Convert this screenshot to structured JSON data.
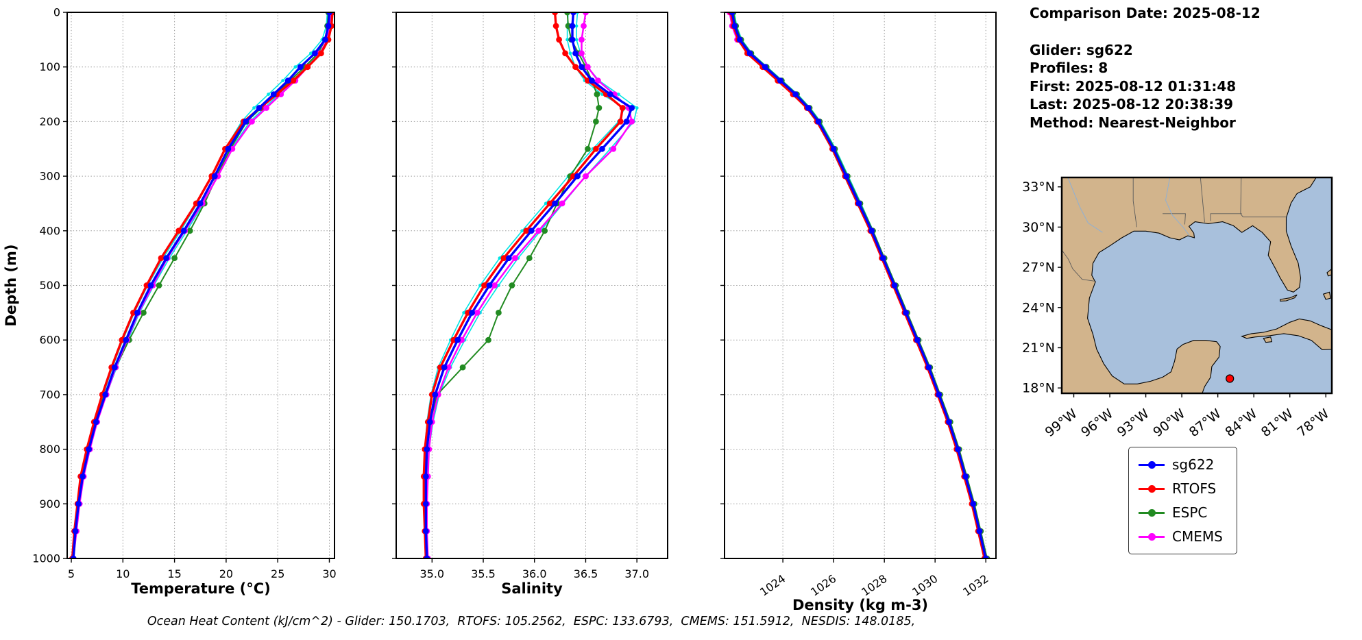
{
  "info_panel": {
    "lines": [
      "Comparison Date: 2025-08-12",
      "Glider: sg622",
      "Profiles: 8",
      "First: 2025-08-12 01:31:48",
      "Last: 2025-08-12 20:38:39",
      "Method: Nearest-Neighbor"
    ]
  },
  "footer": "Ocean Heat Content (kJ/cm^2) - Glider: 150.1703,  RTOFS: 105.2562,  ESPC: 133.6793,  CMEMS: 151.5912,  NESDIS: 148.0185,",
  "ocean_heat_content": {
    "units": "kJ/cm^2",
    "Glider": 150.1703,
    "RTOFS": 105.2562,
    "ESPC": 133.6793,
    "CMEMS": 151.5912,
    "NESDIS": 148.0185
  },
  "legend": {
    "entries": [
      {
        "label": "sg622",
        "color": "#0000ff"
      },
      {
        "label": "RTOFS",
        "color": "#ff0000"
      },
      {
        "label": "ESPC",
        "color": "#228b22"
      },
      {
        "label": "CMEMS",
        "color": "#ff00ff"
      }
    ]
  },
  "chart_data": [
    {
      "name": "temperature",
      "type": "line",
      "xlabel": "Temperature (°C)",
      "ylabel": "Depth (m)",
      "xlim": [
        4.6,
        30.5
      ],
      "xticks": [
        5,
        10,
        15,
        20,
        25,
        30
      ],
      "xtick_labels": [
        "5",
        "10",
        "15",
        "20",
        "25",
        "30"
      ],
      "ylim": [
        0,
        1000
      ],
      "yticks": [
        0,
        100,
        200,
        300,
        400,
        500,
        600,
        700,
        800,
        900,
        1000
      ],
      "show_ytick_labels": true,
      "rotate_xticks": false,
      "grid": true,
      "depths": [
        0,
        25,
        50,
        75,
        100,
        125,
        150,
        175,
        200,
        250,
        300,
        350,
        400,
        450,
        500,
        550,
        600,
        650,
        700,
        750,
        800,
        850,
        900,
        950,
        1000
      ],
      "series": [
        {
          "name": "glider-profile-upper",
          "legend": false,
          "color": "#00e5e5",
          "lw": 1.6,
          "marker": true,
          "r": 2.4,
          "values": [
            30.2,
            30.1,
            29.9,
            29.0,
            27.7,
            26.5,
            25.1,
            23.7,
            22.3,
            20.5,
            19.2,
            17.8,
            16.2,
            14.5,
            13.0,
            11.6,
            10.5,
            9.4,
            8.4,
            7.5,
            6.8,
            6.2,
            5.8,
            5.5,
            5.25
          ]
        },
        {
          "name": "glider-profile-lower",
          "legend": false,
          "color": "#00e5e5",
          "lw": 1.6,
          "marker": true,
          "r": 2.4,
          "values": [
            29.8,
            29.7,
            29.3,
            28.2,
            26.7,
            25.5,
            24.1,
            22.7,
            21.5,
            19.9,
            18.6,
            17.2,
            15.6,
            13.9,
            12.4,
            11.1,
            10.0,
            9.0,
            8.1,
            7.3,
            6.6,
            6.0,
            5.6,
            5.35,
            5.15
          ]
        },
        {
          "name": "ESPC",
          "legend": true,
          "color": "#228b22",
          "lw": 2.0,
          "marker": true,
          "r": 4.4,
          "values": [
            29.9,
            29.8,
            29.6,
            28.9,
            27.6,
            26.2,
            24.8,
            23.4,
            22.0,
            20.4,
            19.1,
            17.9,
            16.5,
            15.0,
            13.5,
            12.0,
            10.6,
            9.3,
            8.2,
            7.3,
            6.6,
            6.0,
            5.7,
            5.4,
            5.2
          ]
        },
        {
          "name": "CMEMS",
          "legend": true,
          "color": "#ff00ff",
          "lw": 2.5,
          "marker": true,
          "r": 4.4,
          "values": [
            30.1,
            30.0,
            29.8,
            29.1,
            27.9,
            26.7,
            25.3,
            23.9,
            22.5,
            20.6,
            19.2,
            17.7,
            16.0,
            14.3,
            12.9,
            11.5,
            10.4,
            9.3,
            8.4,
            7.5,
            6.8,
            6.2,
            5.8,
            5.5,
            5.2
          ]
        },
        {
          "name": "RTOFS",
          "legend": true,
          "color": "#ff0000",
          "lw": 3.4,
          "marker": true,
          "r": 4.4,
          "values": [
            30.3,
            30.2,
            29.9,
            29.2,
            27.9,
            26.5,
            24.9,
            23.3,
            21.7,
            19.9,
            18.6,
            17.1,
            15.4,
            13.7,
            12.3,
            11.0,
            9.9,
            8.9,
            8.0,
            7.2,
            6.5,
            5.9,
            5.6,
            5.3,
            5.1
          ]
        },
        {
          "name": "sg622",
          "legend": true,
          "color": "#0000ff",
          "lw": 3.4,
          "marker": true,
          "r": 4.4,
          "values": [
            30.0,
            29.9,
            29.6,
            28.6,
            27.2,
            26.0,
            24.6,
            23.2,
            21.9,
            20.2,
            18.9,
            17.5,
            15.9,
            14.2,
            12.7,
            11.4,
            10.3,
            9.2,
            8.3,
            7.4,
            6.7,
            6.1,
            5.7,
            5.4,
            5.2
          ]
        }
      ]
    },
    {
      "name": "salinity",
      "type": "line",
      "xlabel": "Salinity",
      "ylabel": "",
      "xlim": [
        34.65,
        37.3
      ],
      "xticks": [
        35.0,
        35.5,
        36.0,
        36.5,
        37.0
      ],
      "xtick_labels": [
        "35.0",
        "35.5",
        "36.0",
        "36.5",
        "37.0"
      ],
      "ylim": [
        0,
        1000
      ],
      "yticks": [
        0,
        100,
        200,
        300,
        400,
        500,
        600,
        700,
        800,
        900,
        1000
      ],
      "show_ytick_labels": false,
      "rotate_xticks": false,
      "grid": true,
      "depths": [
        0,
        25,
        50,
        75,
        100,
        125,
        150,
        175,
        200,
        250,
        300,
        350,
        400,
        450,
        500,
        550,
        600,
        650,
        700,
        750,
        800,
        850,
        900,
        950,
        1000
      ],
      "series": [
        {
          "name": "glider-profile-upper",
          "legend": false,
          "color": "#00e5e5",
          "lw": 1.6,
          "marker": true,
          "r": 2.4,
          "values": [
            36.42,
            36.41,
            36.41,
            36.45,
            36.52,
            36.63,
            36.82,
            37.0,
            36.97,
            36.74,
            36.5,
            36.28,
            36.06,
            35.84,
            35.65,
            35.47,
            35.32,
            35.18,
            35.07,
            35.01,
            34.97,
            34.95,
            34.95,
            34.95,
            34.96
          ]
        },
        {
          "name": "glider-profile-lower",
          "legend": false,
          "color": "#00e5e5",
          "lw": 1.6,
          "marker": true,
          "r": 2.4,
          "values": [
            36.33,
            36.32,
            36.32,
            36.35,
            36.4,
            36.49,
            36.66,
            36.88,
            36.82,
            36.57,
            36.33,
            36.11,
            35.88,
            35.66,
            35.47,
            35.31,
            35.18,
            35.06,
            34.99,
            34.95,
            34.93,
            34.92,
            34.92,
            34.93,
            34.94
          ]
        },
        {
          "name": "ESPC",
          "legend": true,
          "color": "#228b22",
          "lw": 2.0,
          "marker": true,
          "r": 4.4,
          "values": [
            36.32,
            36.33,
            36.36,
            36.43,
            36.5,
            36.56,
            36.61,
            36.63,
            36.6,
            36.52,
            36.35,
            36.22,
            36.1,
            35.95,
            35.78,
            35.65,
            35.55,
            35.3,
            35.05,
            34.98,
            34.95,
            34.94,
            34.94,
            34.94,
            34.95
          ]
        },
        {
          "name": "CMEMS",
          "legend": true,
          "color": "#ff00ff",
          "lw": 2.5,
          "marker": true,
          "r": 4.4,
          "values": [
            36.5,
            36.48,
            36.46,
            36.46,
            36.52,
            36.62,
            36.78,
            36.92,
            36.95,
            36.77,
            36.5,
            36.27,
            36.04,
            35.81,
            35.61,
            35.44,
            35.29,
            35.16,
            35.06,
            35.0,
            34.97,
            34.96,
            34.95,
            34.95,
            34.96
          ]
        },
        {
          "name": "RTOFS",
          "legend": true,
          "color": "#ff0000",
          "lw": 3.4,
          "marker": true,
          "r": 4.4,
          "values": [
            36.2,
            36.21,
            36.24,
            36.3,
            36.4,
            36.52,
            36.7,
            36.86,
            36.84,
            36.6,
            36.38,
            36.15,
            35.92,
            35.7,
            35.51,
            35.35,
            35.21,
            35.08,
            35.0,
            34.96,
            34.93,
            34.92,
            34.92,
            34.93,
            34.94
          ]
        },
        {
          "name": "sg622",
          "legend": true,
          "color": "#0000ff",
          "lw": 3.4,
          "marker": true,
          "r": 4.4,
          "values": [
            36.38,
            36.37,
            36.37,
            36.4,
            36.46,
            36.56,
            36.74,
            36.95,
            36.9,
            36.66,
            36.42,
            36.2,
            35.97,
            35.75,
            35.56,
            35.39,
            35.25,
            35.12,
            35.03,
            34.98,
            34.95,
            34.94,
            34.94,
            34.94,
            34.95
          ]
        }
      ]
    },
    {
      "name": "density",
      "type": "line",
      "xlabel": "Density (kg m-3)",
      "ylabel": "",
      "xlim": [
        1021.7,
        1032.4
      ],
      "xticks": [
        1024,
        1026,
        1028,
        1030,
        1032
      ],
      "xtick_labels": [
        "1024",
        "1026",
        "1028",
        "1030",
        "1032"
      ],
      "ylim": [
        0,
        1000
      ],
      "yticks": [
        0,
        100,
        200,
        300,
        400,
        500,
        600,
        700,
        800,
        900,
        1000
      ],
      "show_ytick_labels": false,
      "rotate_xticks": true,
      "grid": true,
      "depths": [
        0,
        25,
        50,
        75,
        100,
        125,
        150,
        175,
        200,
        250,
        300,
        350,
        400,
        450,
        500,
        550,
        600,
        650,
        700,
        750,
        800,
        850,
        900,
        950,
        1000
      ],
      "series": [
        {
          "name": "glider-profile-upper",
          "legend": false,
          "color": "#00e5e5",
          "lw": 1.6,
          "marker": true,
          "r": 2.4,
          "values": [
            1022.08,
            1022.18,
            1022.38,
            1022.78,
            1023.38,
            1023.98,
            1024.58,
            1025.08,
            1025.48,
            1026.08,
            1026.58,
            1027.08,
            1027.56,
            1028.0,
            1028.46,
            1028.9,
            1029.35,
            1029.8,
            1030.2,
            1030.6,
            1030.94,
            1031.24,
            1031.54,
            1031.79,
            1032.04
          ]
        },
        {
          "name": "glider-profile-lower",
          "legend": false,
          "color": "#00e5e5",
          "lw": 1.6,
          "marker": true,
          "r": 2.4,
          "values": [
            1021.92,
            1022.02,
            1022.22,
            1022.62,
            1023.22,
            1023.82,
            1024.42,
            1024.92,
            1025.32,
            1025.92,
            1026.42,
            1026.92,
            1027.44,
            1027.9,
            1028.34,
            1028.8,
            1029.25,
            1029.7,
            1030.1,
            1030.5,
            1030.86,
            1031.16,
            1031.46,
            1031.71,
            1031.96
          ]
        },
        {
          "name": "ESPC",
          "legend": true,
          "color": "#228b22",
          "lw": 2.0,
          "marker": true,
          "r": 4.4,
          "values": [
            1022.05,
            1022.15,
            1022.35,
            1022.75,
            1023.35,
            1023.95,
            1024.55,
            1025.05,
            1025.45,
            1026.05,
            1026.55,
            1027.05,
            1027.55,
            1028.0,
            1028.45,
            1028.9,
            1029.35,
            1029.8,
            1030.2,
            1030.6,
            1030.95,
            1031.25,
            1031.55,
            1031.8,
            1032.05
          ]
        },
        {
          "name": "CMEMS",
          "legend": true,
          "color": "#ff00ff",
          "lw": 2.5,
          "marker": true,
          "r": 4.4,
          "values": [
            1021.9,
            1022.0,
            1022.2,
            1022.65,
            1023.25,
            1023.85,
            1024.45,
            1025.0,
            1025.4,
            1026.0,
            1026.5,
            1027.0,
            1027.5,
            1027.95,
            1028.4,
            1028.85,
            1029.3,
            1029.75,
            1030.15,
            1030.55,
            1030.9,
            1031.2,
            1031.5,
            1031.75,
            1032.0
          ]
        },
        {
          "name": "RTOFS",
          "legend": true,
          "color": "#ff0000",
          "lw": 3.4,
          "marker": true,
          "r": 4.4,
          "values": [
            1021.95,
            1022.05,
            1022.25,
            1022.6,
            1023.2,
            1023.8,
            1024.4,
            1024.95,
            1025.35,
            1025.95,
            1026.45,
            1026.95,
            1027.45,
            1027.9,
            1028.35,
            1028.8,
            1029.25,
            1029.7,
            1030.1,
            1030.5,
            1030.85,
            1031.15,
            1031.45,
            1031.7,
            1031.95
          ]
        },
        {
          "name": "sg622",
          "legend": true,
          "color": "#0000ff",
          "lw": 3.4,
          "marker": true,
          "r": 4.4,
          "values": [
            1022.0,
            1022.1,
            1022.3,
            1022.7,
            1023.3,
            1023.9,
            1024.5,
            1025.0,
            1025.4,
            1026.0,
            1026.5,
            1027.0,
            1027.5,
            1027.95,
            1028.4,
            1028.85,
            1029.3,
            1029.75,
            1030.15,
            1030.55,
            1030.9,
            1031.2,
            1031.5,
            1031.75,
            1032.0
          ]
        }
      ]
    }
  ],
  "map": {
    "extent": {
      "lon_min": -100,
      "lon_max": -77.5,
      "lat_min": 17.6,
      "lat_max": 33.7
    },
    "lat_ticks": [
      18,
      21,
      24,
      27,
      30,
      33
    ],
    "lat_tick_labels": [
      "18°N",
      "21°N",
      "24°N",
      "27°N",
      "30°N",
      "33°N"
    ],
    "lon_ticks": [
      -99,
      -96,
      -93,
      -90,
      -87,
      -84,
      -81,
      -78
    ],
    "lon_tick_labels": [
      "99°W",
      "96°W",
      "93°W",
      "90°W",
      "87°W",
      "84°W",
      "81°W",
      "78°W"
    ],
    "marker": {
      "lon": -86.0,
      "lat": 18.7,
      "color": "#ff0000"
    },
    "land_color": "#d2b48c",
    "water_color": "#a8c0dc"
  }
}
